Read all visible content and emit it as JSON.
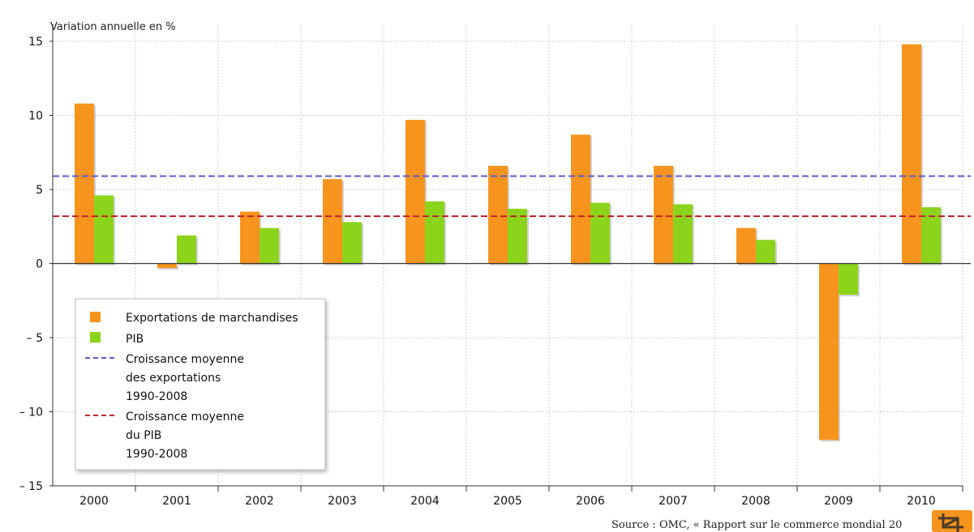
{
  "chart_data": {
    "type": "bar",
    "ylabel": "Variation annuelle en %",
    "ylim": [
      -15,
      15
    ],
    "yticks": [
      "15",
      "10",
      "5",
      "0",
      "– 5",
      "– 10",
      "– 15"
    ],
    "categories": [
      "2000",
      "2001",
      "2002",
      "2003",
      "2004",
      "2005",
      "2006",
      "2007",
      "2008",
      "2009",
      "2010"
    ],
    "series": [
      {
        "name": "Exportations de marchandises",
        "color": "#f7941d",
        "values": [
          10.8,
          -0.3,
          3.5,
          5.7,
          9.7,
          6.6,
          8.7,
          6.6,
          2.4,
          -11.9,
          14.8
        ]
      },
      {
        "name": "PIB",
        "color": "#8cd41c",
        "values": [
          4.6,
          1.9,
          2.4,
          2.8,
          4.2,
          3.7,
          4.1,
          4.0,
          1.6,
          -2.1,
          3.8
        ]
      }
    ],
    "reference_lines": [
      {
        "name_lines": [
          "Croissance moyenne",
          "des exportations",
          "1990-2008"
        ],
        "value": 5.9,
        "color": "#5a5ad0",
        "style": "dashed"
      },
      {
        "name_lines": [
          "Croissance moyenne",
          "du PIB",
          "1990-2008"
        ],
        "value": 3.2,
        "color": "#c0262c",
        "style": "dashed"
      }
    ],
    "grid": true,
    "legend_position": "bottom-left",
    "source": "Source : OMC, « Rapport sur le commerce mondial 20"
  },
  "toolbar": {
    "crop_icon": "crop-icon",
    "accent": "#f7941d"
  }
}
